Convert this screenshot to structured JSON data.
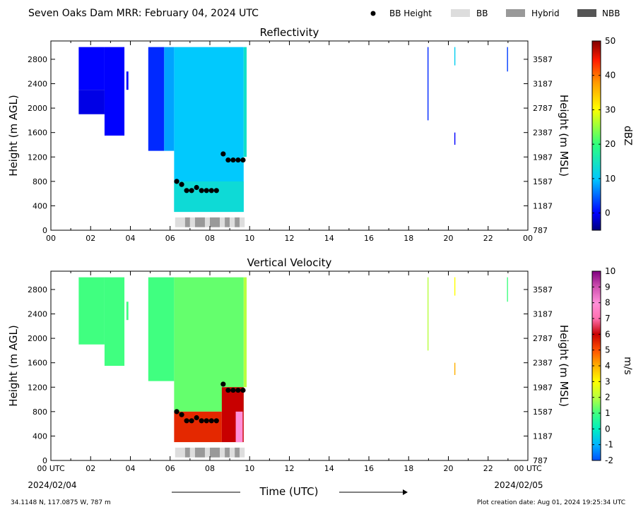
{
  "header": {
    "title": "Seven Oaks Dam MRR:  February 04, 2024 UTC",
    "legend": [
      {
        "label": "BB Height",
        "kind": "dot",
        "color": "#000000"
      },
      {
        "label": "BB",
        "kind": "box",
        "color": "#dddddd"
      },
      {
        "label": "Hybrid",
        "kind": "box",
        "color": "#999999"
      },
      {
        "label": "NBB",
        "kind": "box",
        "color": "#555555"
      }
    ]
  },
  "footer": {
    "location": "34.1148 N, 117.0875 W, 787 m",
    "created": "Plot creation date: Aug 01, 2024 19:25:34 UTC",
    "xlabel": "Time (UTC)",
    "start_date": "2024/02/04",
    "end_date": "2024/02/05"
  },
  "chart_data": [
    {
      "type": "heatmap",
      "title": "Reflectivity",
      "ylabel": "Height (m AGL)",
      "y2label": "Height (m MSL)",
      "xlim": [
        0,
        24
      ],
      "ylim": [
        0,
        3100
      ],
      "x_ticks": [
        "00",
        "02",
        "04",
        "06",
        "08",
        "10",
        "12",
        "14",
        "16",
        "18",
        "20",
        "22",
        "00"
      ],
      "y_ticks": [
        0,
        400,
        800,
        1200,
        1600,
        2000,
        2400,
        2800
      ],
      "y2_ticks": [
        787,
        1187,
        1587,
        1987,
        2387,
        2787,
        3187,
        3587
      ],
      "colorbar": {
        "label": "dBZ",
        "min": -5,
        "max": 50,
        "ticks": [
          0,
          10,
          20,
          30,
          40,
          50
        ]
      },
      "regions": [
        {
          "x0": 1.4,
          "x1": 2.7,
          "y0": 2300,
          "y1": 3000,
          "value": 0
        },
        {
          "x0": 1.4,
          "x1": 2.7,
          "y0": 1900,
          "y1": 2300,
          "value": -1
        },
        {
          "x0": 2.7,
          "x1": 3.7,
          "y0": 1550,
          "y1": 3000,
          "value": 0
        },
        {
          "x0": 3.8,
          "x1": 3.9,
          "y0": 2300,
          "y1": 2600,
          "value": 0
        },
        {
          "x0": 4.9,
          "x1": 5.7,
          "y0": 1300,
          "y1": 3000,
          "value": 2
        },
        {
          "x0": 5.7,
          "x1": 6.2,
          "y0": 1300,
          "y1": 3000,
          "value": 8
        },
        {
          "x0": 6.2,
          "x1": 9.7,
          "y0": 300,
          "y1": 3000,
          "value": 10
        },
        {
          "x0": 6.2,
          "x1": 9.7,
          "y0": 300,
          "y1": 800,
          "value": 13
        },
        {
          "x0": 9.7,
          "x1": 9.85,
          "y0": 1200,
          "y1": 3000,
          "value": 14
        },
        {
          "x0": 18.95,
          "x1": 19.0,
          "y0": 1800,
          "y1": 3000,
          "value": 2
        },
        {
          "x0": 20.3,
          "x1": 20.35,
          "y0": 2700,
          "y1": 3000,
          "value": 11
        },
        {
          "x0": 20.3,
          "x1": 20.35,
          "y0": 1400,
          "y1": 1600,
          "value": 0
        },
        {
          "x0": 22.95,
          "x1": 23.0,
          "y0": 2600,
          "y1": 3000,
          "value": 3
        }
      ],
      "bb_height": [
        {
          "x": 6.33,
          "y": 800
        },
        {
          "x": 6.58,
          "y": 750
        },
        {
          "x": 6.83,
          "y": 650
        },
        {
          "x": 7.08,
          "y": 650
        },
        {
          "x": 7.33,
          "y": 700
        },
        {
          "x": 7.58,
          "y": 650
        },
        {
          "x": 7.83,
          "y": 650
        },
        {
          "x": 8.08,
          "y": 650
        },
        {
          "x": 8.33,
          "y": 650
        },
        {
          "x": 8.67,
          "y": 1250
        },
        {
          "x": 8.92,
          "y": 1150
        },
        {
          "x": 9.17,
          "y": 1150
        },
        {
          "x": 9.42,
          "y": 1150
        },
        {
          "x": 9.67,
          "y": 1150
        }
      ],
      "bb_class": [
        {
          "x0": 6.25,
          "x1": 6.75,
          "class": "BB"
        },
        {
          "x0": 6.75,
          "x1": 7.0,
          "class": "Hybrid"
        },
        {
          "x0": 7.0,
          "x1": 7.25,
          "class": "BB"
        },
        {
          "x0": 7.25,
          "x1": 7.75,
          "class": "Hybrid"
        },
        {
          "x0": 7.75,
          "x1": 8.0,
          "class": "BB"
        },
        {
          "x0": 8.0,
          "x1": 8.5,
          "class": "Hybrid"
        },
        {
          "x0": 8.5,
          "x1": 8.75,
          "class": "BB"
        },
        {
          "x0": 8.75,
          "x1": 9.0,
          "class": "Hybrid"
        },
        {
          "x0": 9.0,
          "x1": 9.25,
          "class": "BB"
        },
        {
          "x0": 9.25,
          "x1": 9.5,
          "class": "Hybrid"
        },
        {
          "x0": 9.5,
          "x1": 9.75,
          "class": "BB"
        }
      ]
    },
    {
      "type": "heatmap",
      "title": "Vertical Velocity",
      "ylabel": "Height (m AGL)",
      "y2label": "Height (m MSL)",
      "xlim": [
        0,
        24
      ],
      "ylim": [
        0,
        3100
      ],
      "x_ticks": [
        "00 UTC",
        "02",
        "04",
        "06",
        "08",
        "10",
        "12",
        "14",
        "16",
        "18",
        "20",
        "22",
        "00 UTC"
      ],
      "y_ticks": [
        0,
        400,
        800,
        1200,
        1600,
        2000,
        2400,
        2800
      ],
      "y2_ticks": [
        787,
        1187,
        1587,
        1987,
        2387,
        2787,
        3187,
        3587
      ],
      "colorbar": {
        "label": "m/s",
        "min": -2,
        "max": 10,
        "ticks": [
          -2,
          -1,
          0,
          1,
          2,
          3,
          4,
          5,
          6,
          7,
          8,
          9,
          10
        ]
      },
      "regions": [
        {
          "x0": 1.4,
          "x1": 2.7,
          "y0": 1900,
          "y1": 3000,
          "value": 1
        },
        {
          "x0": 2.7,
          "x1": 3.7,
          "y0": 1550,
          "y1": 3000,
          "value": 1
        },
        {
          "x0": 3.8,
          "x1": 3.9,
          "y0": 2300,
          "y1": 2600,
          "value": 1
        },
        {
          "x0": 4.9,
          "x1": 6.2,
          "y0": 1300,
          "y1": 3000,
          "value": 1
        },
        {
          "x0": 6.2,
          "x1": 9.7,
          "y0": 800,
          "y1": 3000,
          "value": 1.3
        },
        {
          "x0": 6.2,
          "x1": 8.6,
          "y0": 300,
          "y1": 800,
          "value": 5.5
        },
        {
          "x0": 8.6,
          "x1": 9.7,
          "y0": 300,
          "y1": 1200,
          "value": 6
        },
        {
          "x0": 9.3,
          "x1": 9.65,
          "y0": 300,
          "y1": 800,
          "value": 8
        },
        {
          "x0": 9.7,
          "x1": 9.85,
          "y0": 1200,
          "y1": 3000,
          "value": 2
        },
        {
          "x0": 18.95,
          "x1": 19.0,
          "y0": 1800,
          "y1": 3000,
          "value": 2
        },
        {
          "x0": 20.3,
          "x1": 20.35,
          "y0": 2700,
          "y1": 3000,
          "value": 3
        },
        {
          "x0": 20.3,
          "x1": 20.35,
          "y0": 1400,
          "y1": 1600,
          "value": 4
        },
        {
          "x0": 22.95,
          "x1": 23.0,
          "y0": 2600,
          "y1": 3000,
          "value": 1
        }
      ],
      "bb_height": [
        {
          "x": 6.33,
          "y": 800
        },
        {
          "x": 6.58,
          "y": 750
        },
        {
          "x": 6.83,
          "y": 650
        },
        {
          "x": 7.08,
          "y": 650
        },
        {
          "x": 7.33,
          "y": 700
        },
        {
          "x": 7.58,
          "y": 650
        },
        {
          "x": 7.83,
          "y": 650
        },
        {
          "x": 8.08,
          "y": 650
        },
        {
          "x": 8.33,
          "y": 650
        },
        {
          "x": 8.67,
          "y": 1250
        },
        {
          "x": 8.92,
          "y": 1150
        },
        {
          "x": 9.17,
          "y": 1150
        },
        {
          "x": 9.42,
          "y": 1150
        },
        {
          "x": 9.67,
          "y": 1150
        }
      ],
      "bb_class": [
        {
          "x0": 6.25,
          "x1": 6.75,
          "class": "BB"
        },
        {
          "x0": 6.75,
          "x1": 7.0,
          "class": "Hybrid"
        },
        {
          "x0": 7.0,
          "x1": 7.25,
          "class": "BB"
        },
        {
          "x0": 7.25,
          "x1": 7.75,
          "class": "Hybrid"
        },
        {
          "x0": 7.75,
          "x1": 8.0,
          "class": "BB"
        },
        {
          "x0": 8.0,
          "x1": 8.5,
          "class": "Hybrid"
        },
        {
          "x0": 8.5,
          "x1": 8.75,
          "class": "BB"
        },
        {
          "x0": 8.75,
          "x1": 9.0,
          "class": "Hybrid"
        },
        {
          "x0": 9.0,
          "x1": 9.25,
          "class": "BB"
        },
        {
          "x0": 9.25,
          "x1": 9.5,
          "class": "Hybrid"
        },
        {
          "x0": 9.5,
          "x1": 9.75,
          "class": "BB"
        }
      ]
    }
  ]
}
